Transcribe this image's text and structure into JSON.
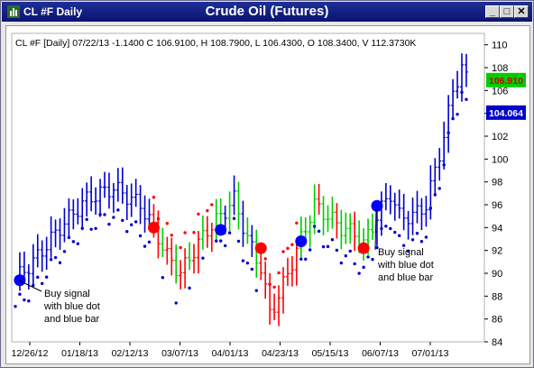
{
  "window": {
    "symbol_title": "CL #F Daily",
    "chart_title": "Crude Oil (Futures)",
    "minimize_label": "_",
    "maximize_label": "□",
    "close_label": "✕",
    "icon": "chart-app-icon"
  },
  "chart_data": {
    "type": "bar",
    "subtype": "ohlc",
    "info_line": "CL #F [Daily] 07/22/13  -1.1400 C 106.9100, H 108.7900, L 106.4300, O 108.3400, V 112.3730K",
    "ylim": [
      84,
      111
    ],
    "y_ticks": [
      "110",
      "108",
      "106",
      "104",
      "102",
      "100",
      "98",
      "96",
      "94",
      "92",
      "90",
      "88",
      "86",
      "84"
    ],
    "x_ticks": [
      "12/26/12",
      "01/18/13",
      "02/12/13",
      "03/07/13",
      "04/01/13",
      "04/23/13",
      "05/15/13",
      "06/07/13",
      "07/01/13"
    ],
    "price_labels": [
      {
        "text": "106.910",
        "value": 106.91,
        "color": "#00cc00",
        "text_color": "#cc0000"
      },
      {
        "text": "104.064",
        "value": 104.064,
        "color": "#0000cc",
        "text_color": "#ffffff"
      }
    ],
    "series_colors": {
      "up": "#00cc00",
      "down": "#ff0000",
      "signal": "#0000cc",
      "dots_sell": "#ff0000"
    },
    "signals": [
      {
        "type": "buy",
        "color": "#0000ff",
        "bar": 1,
        "value": 89.4
      },
      {
        "type": "sell",
        "color": "#ff0000",
        "bar": 31,
        "value": 94.0
      },
      {
        "type": "buy",
        "color": "#0000ff",
        "bar": 46,
        "value": 93.8
      },
      {
        "type": "sell",
        "color": "#ff0000",
        "bar": 55,
        "value": 92.2
      },
      {
        "type": "buy",
        "color": "#0000ff",
        "bar": 64,
        "value": 92.8
      },
      {
        "type": "sell",
        "color": "#ff0000",
        "bar": 78,
        "value": 92.2
      },
      {
        "type": "buy",
        "color": "#0000ff",
        "bar": 81,
        "value": 95.9
      }
    ],
    "annotations": [
      {
        "lines": [
          "Buy signal",
          "with blue dot",
          "and blue bar"
        ]
      },
      {
        "lines": [
          "Buy signal",
          "with blue dot",
          "and blue bar"
        ]
      }
    ]
  }
}
